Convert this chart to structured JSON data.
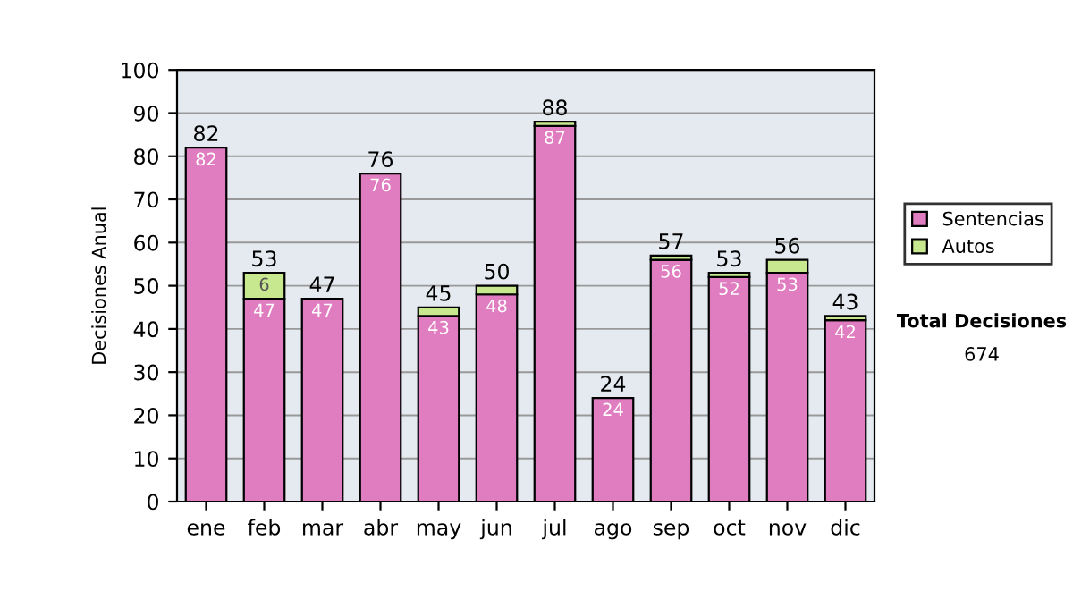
{
  "chart_data": {
    "type": "bar",
    "stacked": true,
    "ylabel": "Decisiones Anual",
    "categories": [
      "ene",
      "feb",
      "mar",
      "abr",
      "may",
      "jun",
      "jul",
      "ago",
      "sep",
      "oct",
      "nov",
      "dic"
    ],
    "series": [
      {
        "name": "Sentencias",
        "color": "#e07cc0",
        "values": [
          82,
          47,
          47,
          76,
          43,
          48,
          87,
          24,
          56,
          52,
          53,
          42
        ],
        "value_labels": [
          "82",
          "47",
          "47",
          "76",
          "43",
          "48",
          "87",
          "24",
          "56",
          "52",
          "53",
          "42"
        ]
      },
      {
        "name": "Autos",
        "color": "#c8e890",
        "values": [
          null,
          6,
          null,
          null,
          2,
          2,
          1,
          null,
          1,
          1,
          3,
          1
        ],
        "value_labels": [
          null,
          "6",
          null,
          null,
          null,
          null,
          null,
          null,
          null,
          null,
          null,
          null
        ]
      }
    ],
    "totals": [
      "82",
      "53",
      "47",
      "76",
      "45",
      "50",
      "88",
      "24",
      "57",
      "53",
      "56",
      "43"
    ],
    "ylim": [
      0,
      100
    ],
    "yticks": [
      0,
      10,
      20,
      30,
      40,
      50,
      60,
      70,
      80,
      90,
      100
    ],
    "grid": "y",
    "legend": "right",
    "annotations": [
      "Total Decisiones",
      "674"
    ]
  }
}
